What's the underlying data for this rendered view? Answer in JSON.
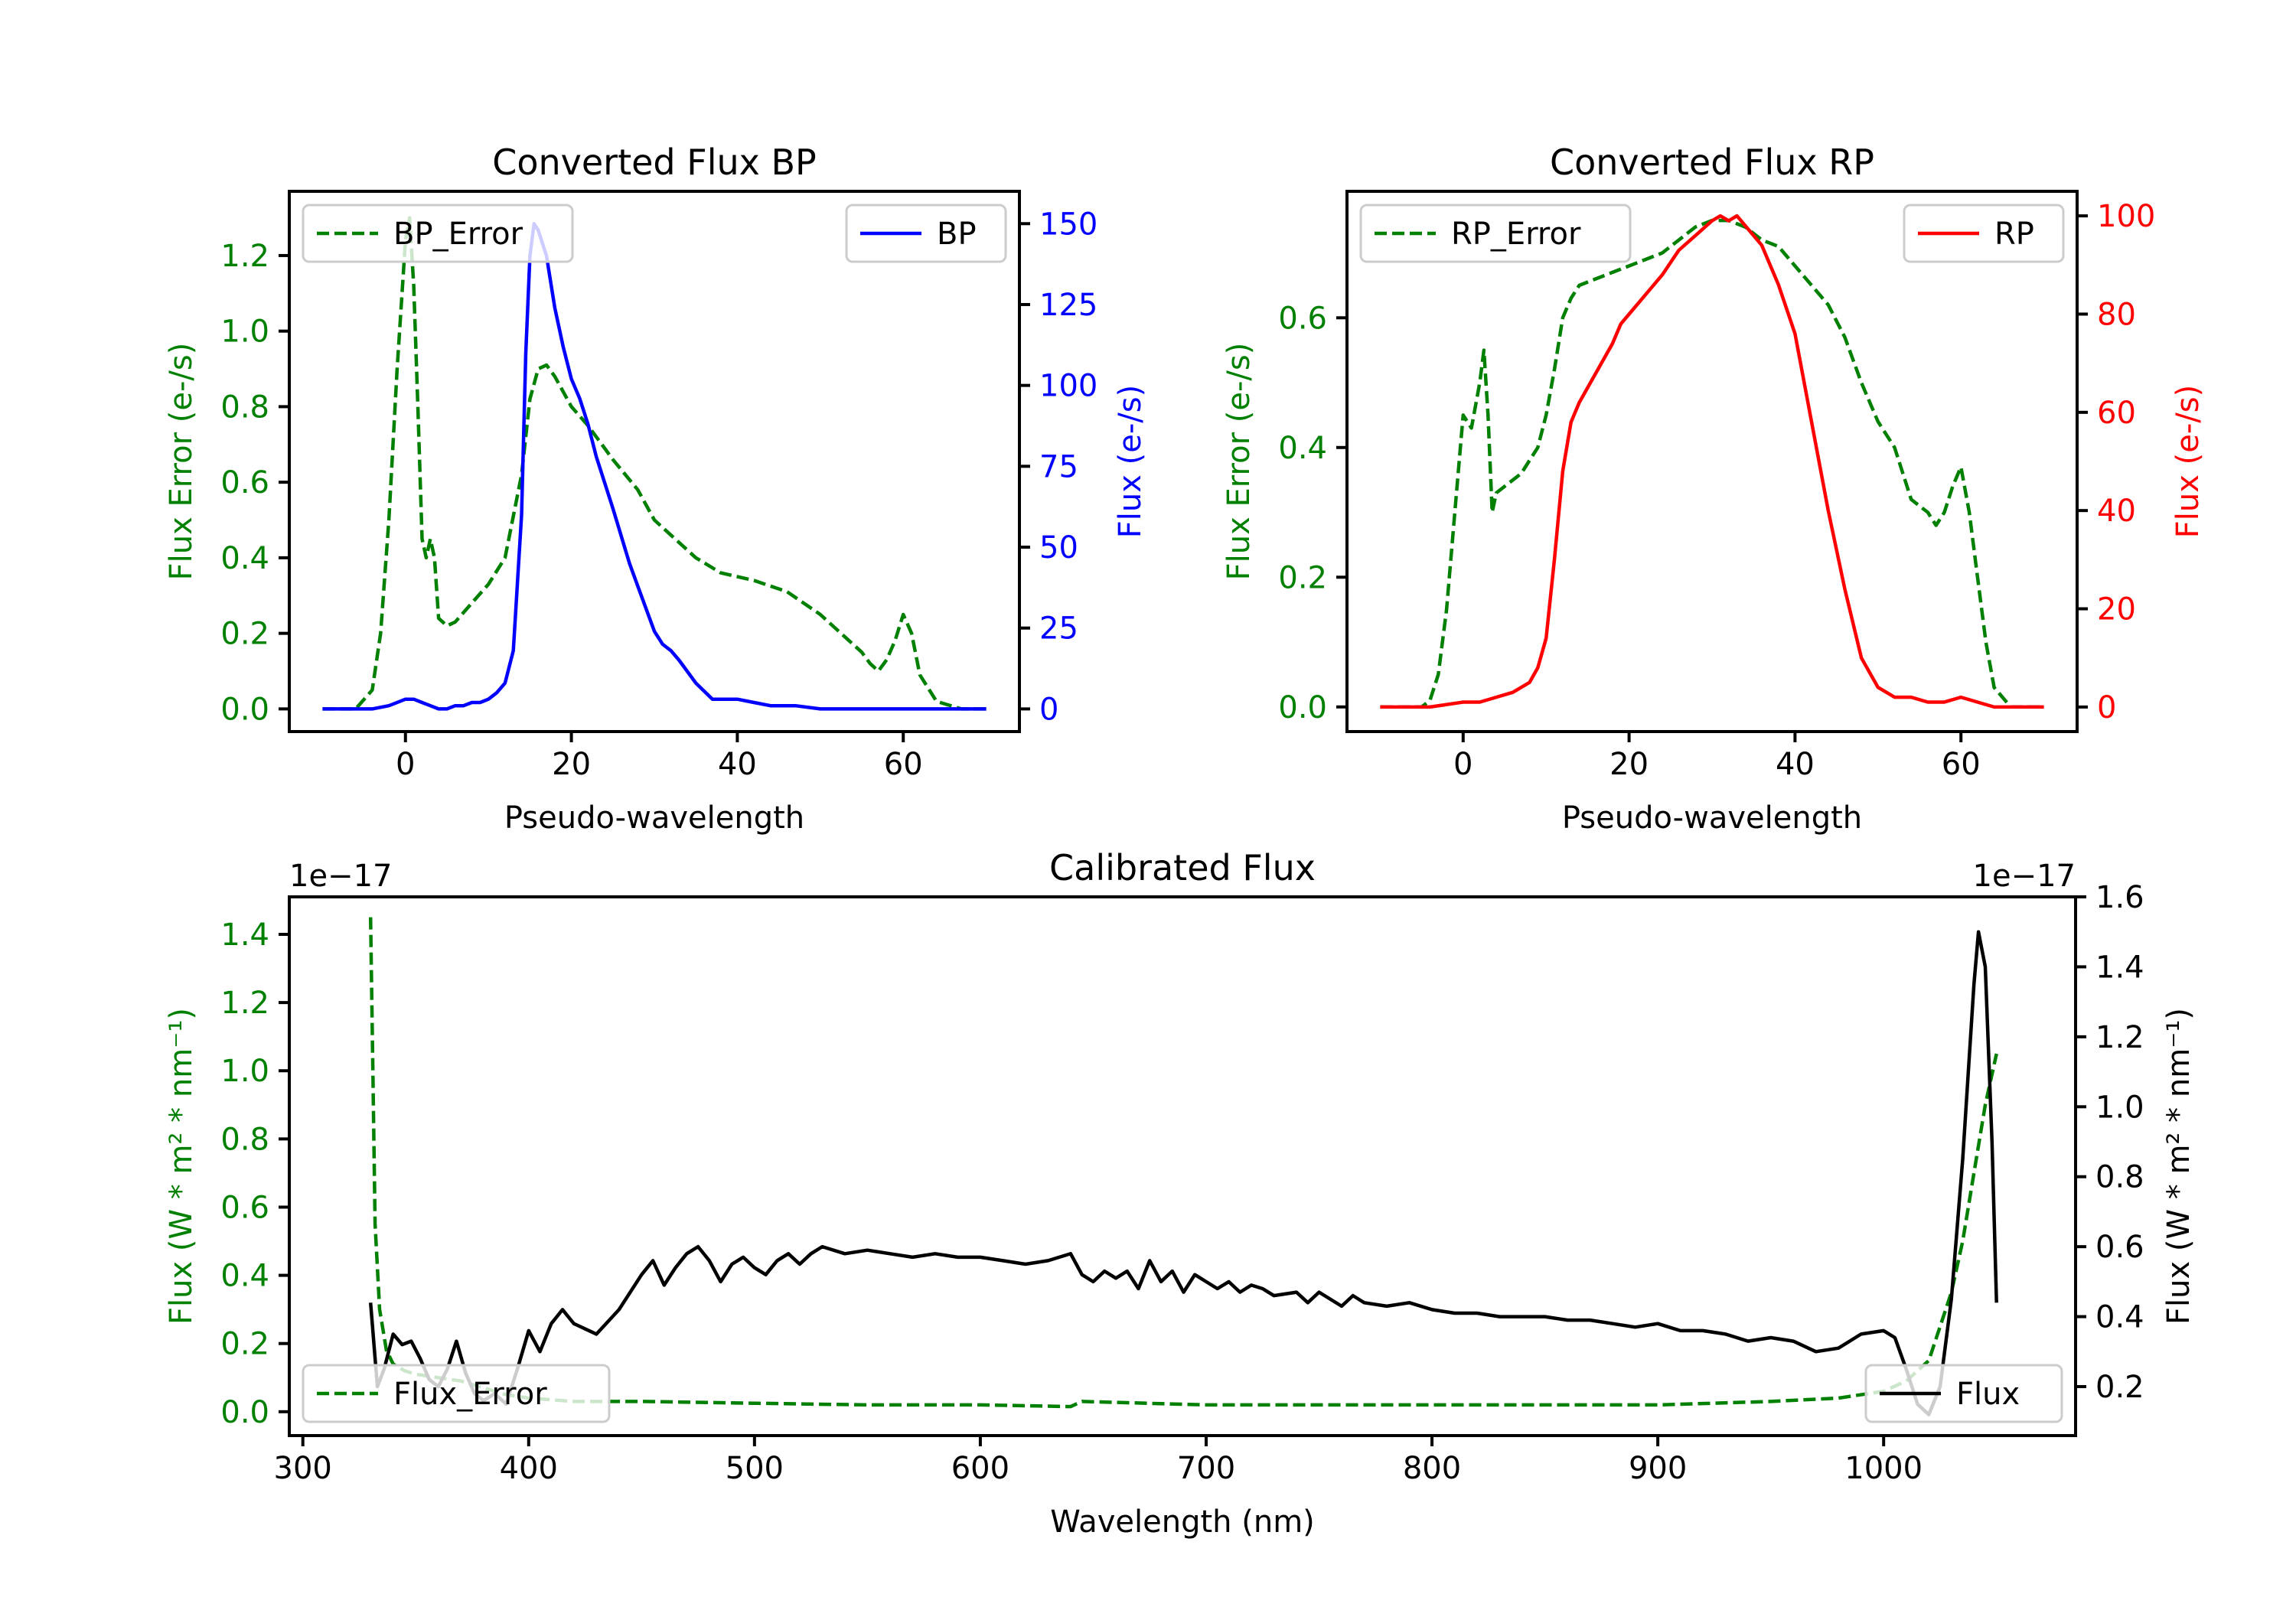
{
  "chart_data": [
    {
      "type": "line",
      "title": "Converted Flux BP",
      "xlabel": "Pseudo-wavelength",
      "ylabel_left": "Flux Error (e-/s)",
      "ylabel_right": "Flux (e-/s)",
      "xlim": [
        -14,
        74
      ],
      "ylim_left": [
        -0.06,
        1.37
      ],
      "ylim_right": [
        -7,
        160
      ],
      "xticks": [
        "0",
        "20",
        "40",
        "60"
      ],
      "yticks_left": [
        "0.0",
        "0.2",
        "0.4",
        "0.6",
        "0.8",
        "1.0",
        "1.2"
      ],
      "yticks_right": [
        "0",
        "25",
        "50",
        "75",
        "100",
        "125",
        "150"
      ],
      "legend_left": "top-left",
      "legend_right": "top-right",
      "left_color": "#008000",
      "right_color": "#0000ff",
      "series": [
        {
          "name": "BP_Error",
          "axis": "left",
          "color": "#008000",
          "style": "dashed",
          "x": [
            -10,
            -6,
            -4,
            -3,
            -2,
            -1,
            0,
            0.5,
            1,
            1.5,
            2,
            2.5,
            3,
            3.5,
            4,
            5,
            6,
            8,
            10,
            12,
            14,
            15,
            16,
            17,
            18,
            20,
            22,
            25,
            28,
            30,
            32,
            35,
            38,
            42,
            46,
            50,
            53,
            55,
            56,
            57,
            58,
            59,
            60,
            61,
            62,
            64,
            67,
            70
          ],
          "y": [
            0.0,
            0.0,
            0.05,
            0.2,
            0.5,
            0.9,
            1.24,
            1.3,
            1.12,
            0.8,
            0.45,
            0.4,
            0.45,
            0.4,
            0.24,
            0.22,
            0.23,
            0.28,
            0.33,
            0.4,
            0.62,
            0.82,
            0.9,
            0.91,
            0.88,
            0.8,
            0.75,
            0.66,
            0.58,
            0.5,
            0.46,
            0.4,
            0.36,
            0.34,
            0.31,
            0.25,
            0.19,
            0.15,
            0.12,
            0.1,
            0.13,
            0.18,
            0.25,
            0.2,
            0.09,
            0.02,
            0.0,
            0.0
          ]
        },
        {
          "name": "BP",
          "axis": "right",
          "color": "#0000ff",
          "style": "solid",
          "x": [
            -10,
            -4,
            -2,
            0,
            1,
            2,
            3,
            4,
            5,
            6,
            7,
            8,
            9,
            10,
            11,
            12,
            13,
            14,
            14.5,
            15,
            15.5,
            16,
            17,
            18,
            19,
            20,
            21,
            22,
            23,
            25,
            27,
            28,
            30,
            31,
            32,
            33,
            35,
            37,
            40,
            42,
            44,
            47,
            50,
            55,
            60,
            65,
            70
          ],
          "y": [
            0,
            0,
            1,
            3,
            3,
            2,
            1,
            0,
            0,
            1,
            1,
            2,
            2,
            3,
            5,
            8,
            18,
            60,
            110,
            140,
            150,
            148,
            140,
            124,
            112,
            102,
            96,
            88,
            78,
            62,
            45,
            38,
            24,
            20,
            18,
            15,
            8,
            3,
            3,
            2,
            1,
            1,
            0,
            0,
            0,
            0,
            0
          ]
        }
      ]
    },
    {
      "type": "line",
      "title": "Converted Flux RP",
      "xlabel": "Pseudo-wavelength",
      "ylabel_left": "Flux Error (e-/s)",
      "ylabel_right": "Flux (e-/s)",
      "xlim": [
        -14,
        74
      ],
      "ylim_left": [
        -0.038,
        0.795
      ],
      "ylim_right": [
        -5,
        105
      ],
      "xticks": [
        "0",
        "20",
        "40",
        "60"
      ],
      "yticks_left": [
        "0.0",
        "0.2",
        "0.4",
        "0.6"
      ],
      "yticks_right": [
        "0",
        "20",
        "40",
        "60",
        "80",
        "100"
      ],
      "legend_left": "top-left",
      "legend_right": "top-right",
      "left_color": "#008000",
      "right_color": "#ff0000",
      "series": [
        {
          "name": "RP_Error",
          "axis": "left",
          "color": "#008000",
          "style": "dashed",
          "x": [
            -10,
            -5,
            -4,
            -3,
            -2,
            -1,
            0,
            1,
            2,
            2.5,
            3,
            3.5,
            4,
            5,
            6,
            7,
            8,
            9,
            10,
            11,
            12,
            13,
            14,
            16,
            18,
            20,
            22,
            24,
            26,
            28,
            30,
            32,
            34,
            36,
            38,
            40,
            42,
            44,
            46,
            48,
            50,
            52,
            54,
            55,
            56,
            57,
            58,
            59,
            60,
            61,
            62,
            63,
            64,
            66,
            70
          ],
          "y": [
            0.0,
            0.0,
            0.01,
            0.05,
            0.15,
            0.3,
            0.45,
            0.43,
            0.5,
            0.55,
            0.45,
            0.3,
            0.33,
            0.34,
            0.35,
            0.36,
            0.38,
            0.4,
            0.45,
            0.52,
            0.6,
            0.63,
            0.65,
            0.66,
            0.67,
            0.68,
            0.69,
            0.7,
            0.72,
            0.74,
            0.75,
            0.75,
            0.74,
            0.72,
            0.71,
            0.68,
            0.65,
            0.62,
            0.57,
            0.5,
            0.44,
            0.4,
            0.32,
            0.31,
            0.3,
            0.28,
            0.3,
            0.34,
            0.37,
            0.3,
            0.2,
            0.1,
            0.03,
            0.0,
            0.0
          ]
        },
        {
          "name": "RP",
          "axis": "right",
          "color": "#ff0000",
          "style": "solid",
          "x": [
            -10,
            -4,
            0,
            2,
            4,
            6,
            8,
            9,
            10,
            11,
            12,
            13,
            14,
            16,
            18,
            19,
            20,
            22,
            24,
            26,
            28,
            30,
            31,
            32,
            33,
            34,
            36,
            38,
            40,
            42,
            44,
            46,
            48,
            50,
            52,
            54,
            56,
            58,
            60,
            62,
            64,
            70
          ],
          "y": [
            0,
            0,
            1,
            1,
            2,
            3,
            5,
            8,
            14,
            30,
            48,
            58,
            62,
            68,
            74,
            78,
            80,
            84,
            88,
            93,
            96,
            99,
            100,
            99,
            100,
            98,
            94,
            86,
            76,
            58,
            40,
            24,
            10,
            4,
            2,
            2,
            1,
            1,
            2,
            1,
            0,
            0
          ]
        }
      ]
    },
    {
      "type": "line",
      "title": "Calibrated Flux",
      "xlabel": "Wavelength (nm)",
      "ylabel_left": "Flux (W * m² * nm⁻¹)",
      "ylabel_right": "Flux (W * m² * nm⁻¹)",
      "offset_left": "1e−17",
      "offset_right": "1e−17",
      "xlim": [
        294,
        1085
      ],
      "ylim_left": [
        -0.07,
        1.51
      ],
      "ylim_right": [
        0.06,
        1.6
      ],
      "xticks": [
        "300",
        "400",
        "500",
        "600",
        "700",
        "800",
        "900",
        "1000"
      ],
      "yticks_left": [
        "0.0",
        "0.2",
        "0.4",
        "0.6",
        "0.8",
        "1.0",
        "1.2",
        "1.4"
      ],
      "yticks_right": [
        "0.2",
        "0.4",
        "0.6",
        "0.8",
        "1.0",
        "1.2",
        "1.4",
        "1.6"
      ],
      "legend_left": "bottom-left",
      "legend_right": "bottom-right",
      "left_color": "#008000",
      "right_color": "#000000",
      "series": [
        {
          "name": "Flux_Error",
          "axis": "left",
          "color": "#008000",
          "style": "dashed",
          "x": [
            330,
            331,
            332,
            334,
            337,
            340,
            345,
            350,
            360,
            370,
            380,
            390,
            400,
            420,
            450,
            500,
            550,
            600,
            640,
            645,
            700,
            800,
            900,
            950,
            980,
            1000,
            1010,
            1020,
            1025,
            1030,
            1035,
            1040,
            1045,
            1050
          ],
          "y": [
            1.45,
            1.0,
            0.55,
            0.3,
            0.18,
            0.14,
            0.12,
            0.11,
            0.1,
            0.09,
            0.07,
            0.05,
            0.04,
            0.03,
            0.03,
            0.025,
            0.02,
            0.02,
            0.015,
            0.03,
            0.02,
            0.02,
            0.02,
            0.03,
            0.04,
            0.06,
            0.09,
            0.15,
            0.25,
            0.35,
            0.5,
            0.7,
            0.9,
            1.05
          ]
        },
        {
          "name": "Flux",
          "axis": "right",
          "color": "#000000",
          "style": "solid",
          "x": [
            330,
            333,
            336,
            340,
            344,
            348,
            352,
            356,
            360,
            364,
            368,
            372,
            376,
            380,
            385,
            390,
            395,
            400,
            405,
            410,
            415,
            420,
            430,
            440,
            450,
            455,
            460,
            465,
            470,
            475,
            480,
            485,
            490,
            495,
            500,
            505,
            510,
            515,
            520,
            525,
            530,
            540,
            550,
            560,
            570,
            580,
            590,
            600,
            610,
            620,
            630,
            640,
            645,
            650,
            655,
            660,
            665,
            670,
            675,
            680,
            685,
            690,
            695,
            700,
            705,
            710,
            715,
            720,
            725,
            730,
            740,
            745,
            750,
            760,
            765,
            770,
            780,
            790,
            800,
            810,
            820,
            830,
            840,
            850,
            860,
            870,
            880,
            890,
            900,
            910,
            920,
            930,
            940,
            950,
            960,
            970,
            980,
            990,
            1000,
            1005,
            1010,
            1015,
            1020,
            1025,
            1030,
            1035,
            1040,
            1042,
            1045,
            1048,
            1050
          ],
          "y": [
            0.44,
            0.2,
            0.25,
            0.35,
            0.32,
            0.33,
            0.28,
            0.22,
            0.2,
            0.25,
            0.33,
            0.24,
            0.18,
            0.16,
            0.18,
            0.15,
            0.25,
            0.36,
            0.3,
            0.38,
            0.42,
            0.38,
            0.35,
            0.42,
            0.52,
            0.56,
            0.49,
            0.54,
            0.58,
            0.6,
            0.56,
            0.5,
            0.55,
            0.57,
            0.54,
            0.52,
            0.56,
            0.58,
            0.55,
            0.58,
            0.6,
            0.58,
            0.59,
            0.58,
            0.57,
            0.58,
            0.57,
            0.57,
            0.56,
            0.55,
            0.56,
            0.58,
            0.52,
            0.5,
            0.53,
            0.51,
            0.53,
            0.48,
            0.56,
            0.5,
            0.53,
            0.47,
            0.52,
            0.5,
            0.48,
            0.5,
            0.47,
            0.49,
            0.48,
            0.46,
            0.47,
            0.44,
            0.47,
            0.43,
            0.46,
            0.44,
            0.43,
            0.44,
            0.42,
            0.41,
            0.41,
            0.4,
            0.4,
            0.4,
            0.39,
            0.39,
            0.38,
            0.37,
            0.38,
            0.36,
            0.36,
            0.35,
            0.33,
            0.34,
            0.33,
            0.3,
            0.31,
            0.35,
            0.36,
            0.34,
            0.25,
            0.15,
            0.12,
            0.2,
            0.45,
            0.85,
            1.35,
            1.5,
            1.4,
            0.9,
            0.44
          ]
        }
      ]
    }
  ]
}
